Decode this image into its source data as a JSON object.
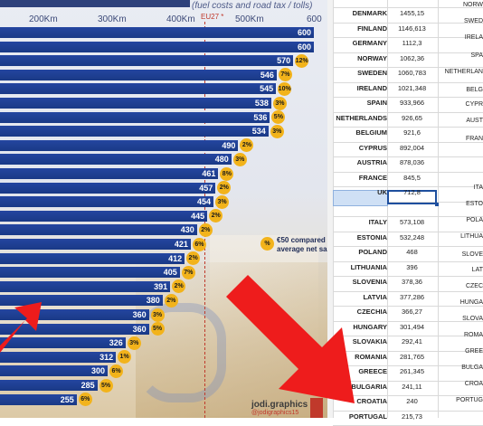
{
  "infographic": {
    "subtitle": "(fuel costs and road tax / tolls)",
    "eu_marker": "EU27 *",
    "x_ticks": [
      "200Km",
      "300Km",
      "400Km",
      "500Km",
      "600"
    ],
    "legend_line1": "€50 compared",
    "legend_line2": "average net sa",
    "brand": "jodi.graphics",
    "brand_handle": "@jodigraphics15"
  },
  "chart_data": {
    "type": "bar",
    "orientation": "horizontal",
    "x_unit": "Km",
    "xlim": [
      0,
      600
    ],
    "values": [
      600,
      600,
      570,
      546,
      545,
      538,
      536,
      534,
      490,
      480,
      461,
      457,
      454,
      445,
      430,
      421,
      412,
      405,
      391,
      380,
      360,
      360,
      326,
      312,
      300,
      285,
      255
    ],
    "badges": [
      "",
      "",
      "12%",
      "7%",
      "10%",
      "3%",
      "5%",
      "3%",
      "2%",
      "3%",
      "8%",
      "2%",
      "3%",
      "2%",
      "2%",
      "6%",
      "2%",
      "7%",
      "2%",
      "2%",
      "3%",
      "5%",
      "3%",
      "1%",
      "6%",
      "5%",
      "6%"
    ]
  },
  "spreadsheet": {
    "group1": [
      {
        "country": "DENMARK",
        "value": "1455,15"
      },
      {
        "country": "FINLAND",
        "value": "1146,613"
      },
      {
        "country": "GERMANY",
        "value": "1112,3"
      },
      {
        "country": "NORWAY",
        "value": "1062,36"
      },
      {
        "country": "SWEDEN",
        "value": "1060,783"
      },
      {
        "country": "IRELAND",
        "value": "1021,348"
      },
      {
        "country": "SPAIN",
        "value": "933,966"
      },
      {
        "country": "NETHERLANDS",
        "value": "926,65"
      },
      {
        "country": "BELGIUM",
        "value": "921,6"
      },
      {
        "country": "CYPRUS",
        "value": "892,004"
      },
      {
        "country": "AUSTRIA",
        "value": "878,036"
      },
      {
        "country": "FRANCE",
        "value": "845,5"
      },
      {
        "country": "UK",
        "value": "712,8"
      }
    ],
    "group2": [
      {
        "country": "ITALY",
        "value": "573,108"
      },
      {
        "country": "ESTONIA",
        "value": "532,248"
      },
      {
        "country": "POLAND",
        "value": "468"
      },
      {
        "country": "LITHUANIA",
        "value": "396"
      },
      {
        "country": "SLOVENIA",
        "value": "378,36"
      },
      {
        "country": "LATVIA",
        "value": "377,286"
      },
      {
        "country": "CZECHIA",
        "value": "366,27"
      },
      {
        "country": "HUNGARY",
        "value": "301,494"
      },
      {
        "country": "SLOVAKIA",
        "value": "292,41"
      },
      {
        "country": "ROMANIA",
        "value": "281,765"
      },
      {
        "country": "GREECE",
        "value": "261,345"
      },
      {
        "country": "BULGARIA",
        "value": "241,11"
      },
      {
        "country": "CROATIA",
        "value": "240"
      },
      {
        "country": "PORTUGAL",
        "value": "215,73"
      }
    ],
    "far_column": [
      "NORW",
      "SWED",
      "IRELA",
      "SPA",
      "NETHERLAN",
      "BELG",
      "CYPR",
      "AUST",
      "FRAN",
      "ITA",
      "ESTO",
      "POLA",
      "LITHUA",
      "SLOVE",
      "LAT",
      "CZEC",
      "HUNGA",
      "SLOVA",
      "ROMA",
      "GREE",
      "BULGA",
      "CROA",
      "PORTUG"
    ]
  },
  "colors": {
    "bar": "#1a3a86",
    "badge": "#f2b31b",
    "arrow": "#ee1c1c",
    "selection": "#1e4f9e"
  }
}
